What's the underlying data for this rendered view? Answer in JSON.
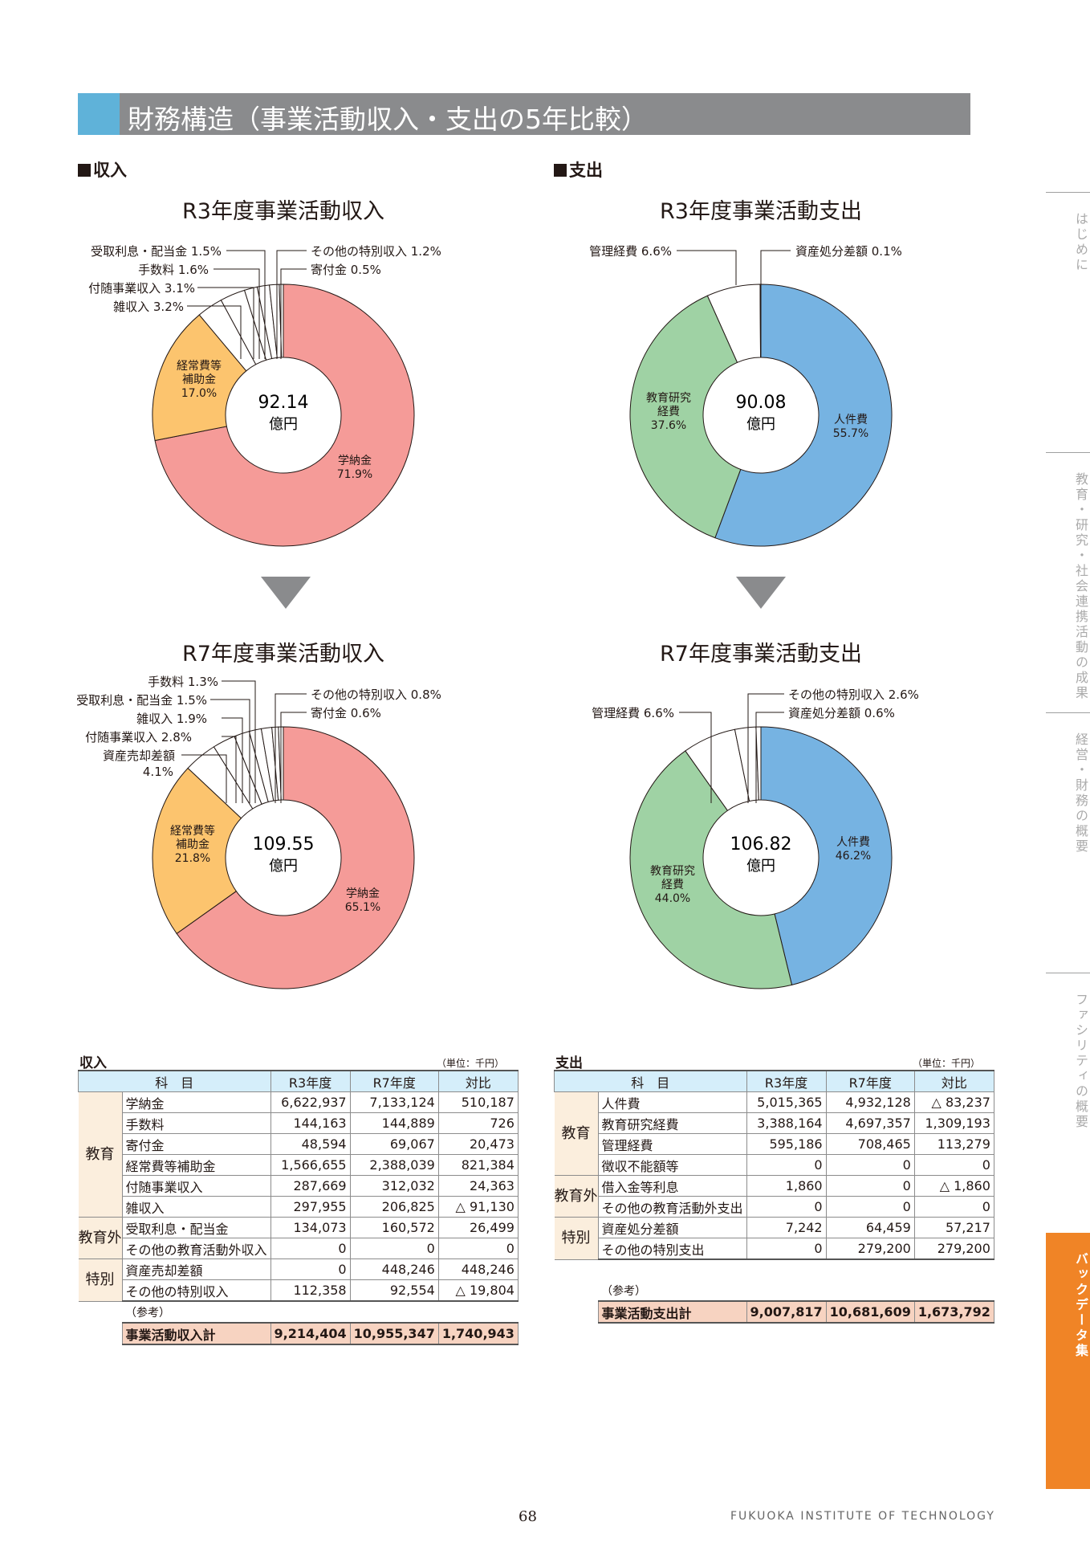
{
  "title": "財務構造（事業活動収入・支出の5年比較）",
  "sections": {
    "income": "収入",
    "expense": "支出"
  },
  "side_tabs": [
    "はじめに",
    "教育・研究・社会連携活動の成果",
    "経営・財務の概要",
    "ファシリティの概要",
    "バックデータ集"
  ],
  "colors": {
    "tuition": "#f59b98",
    "subsidy": "#fcc46e",
    "other": "#ffffff",
    "personnel": "#76b3e2",
    "research": "#9fd2a4",
    "accent": "#f08426",
    "title_bar": "#8a8b8d",
    "title_accent": "#5fb2d9"
  },
  "chart_data": [
    {
      "type": "pie",
      "title": "R3年度事業活動収入",
      "center_value": "92.14",
      "center_unit": "億円",
      "slices": [
        {
          "label": "学納金",
          "value": 71.9,
          "pct": "71.9%",
          "color": "#f59b98"
        },
        {
          "label": "経常費等補助金",
          "value": 17.0,
          "pct": "17.0%",
          "color": "#fcc46e"
        },
        {
          "label": "雑収入",
          "value": 3.2,
          "pct": "3.2%",
          "color": "#ffffff"
        },
        {
          "label": "付随事業収入",
          "value": 3.1,
          "pct": "3.1%",
          "color": "#ffffff"
        },
        {
          "label": "手数料",
          "value": 1.6,
          "pct": "1.6%",
          "color": "#ffffff"
        },
        {
          "label": "受取利息・配当金",
          "value": 1.5,
          "pct": "1.5%",
          "color": "#ffffff"
        },
        {
          "label": "その他の特別収入",
          "value": 1.2,
          "pct": "1.2%",
          "color": "#ffffff"
        },
        {
          "label": "寄付金",
          "value": 0.5,
          "pct": "0.5%",
          "color": "#ffffff"
        }
      ]
    },
    {
      "type": "pie",
      "title": "R3年度事業活動支出",
      "center_value": "90.08",
      "center_unit": "億円",
      "slices": [
        {
          "label": "人件費",
          "value": 55.7,
          "pct": "55.7%",
          "color": "#76b3e2"
        },
        {
          "label": "教育研究経費",
          "value": 37.6,
          "pct": "37.6%",
          "color": "#9fd2a4"
        },
        {
          "label": "管理経費",
          "value": 6.6,
          "pct": "6.6%",
          "color": "#ffffff"
        },
        {
          "label": "資産処分差額",
          "value": 0.1,
          "pct": "0.1%",
          "color": "#ffffff"
        }
      ]
    },
    {
      "type": "pie",
      "title": "R7年度事業活動収入",
      "center_value": "109.55",
      "center_unit": "億円",
      "slices": [
        {
          "label": "学納金",
          "value": 65.1,
          "pct": "65.1%",
          "color": "#f59b98"
        },
        {
          "label": "経常費等補助金",
          "value": 21.8,
          "pct": "21.8%",
          "color": "#fcc46e"
        },
        {
          "label": "資産売却差額",
          "value": 4.1,
          "pct": "4.1%",
          "color": "#ffffff"
        },
        {
          "label": "付随事業収入",
          "value": 2.8,
          "pct": "2.8%",
          "color": "#ffffff"
        },
        {
          "label": "雑収入",
          "value": 1.9,
          "pct": "1.9%",
          "color": "#ffffff"
        },
        {
          "label": "受取利息・配当金",
          "value": 1.5,
          "pct": "1.5%",
          "color": "#ffffff"
        },
        {
          "label": "手数料",
          "value": 1.3,
          "pct": "1.3%",
          "color": "#ffffff"
        },
        {
          "label": "その他の特別収入",
          "value": 0.8,
          "pct": "0.8%",
          "color": "#ffffff"
        },
        {
          "label": "寄付金",
          "value": 0.6,
          "pct": "0.6%",
          "color": "#ffffff"
        }
      ]
    },
    {
      "type": "pie",
      "title": "R7年度事業活動支出",
      "center_value": "106.82",
      "center_unit": "億円",
      "slices": [
        {
          "label": "人件費",
          "value": 46.2,
          "pct": "46.2%",
          "color": "#76b3e2"
        },
        {
          "label": "教育研究経費",
          "value": 44.0,
          "pct": "44.0%",
          "color": "#9fd2a4"
        },
        {
          "label": "管理経費",
          "value": 6.6,
          "pct": "6.6%",
          "color": "#ffffff"
        },
        {
          "label": "その他の特別収入",
          "value": 2.6,
          "pct": "2.6%",
          "color": "#ffffff"
        },
        {
          "label": "資産処分差額",
          "value": 0.6,
          "pct": "0.6%",
          "color": "#ffffff"
        }
      ]
    }
  ],
  "inner_labels": [
    [
      "経常費等",
      "補助金",
      "17.0%"
    ],
    [
      "学納金",
      "71.9%"
    ],
    [
      "教育研究",
      "経費",
      "37.6%"
    ],
    [
      "人件費",
      "55.7%"
    ],
    [
      "経常費等",
      "補助金",
      "21.8%"
    ],
    [
      "学納金",
      "65.1%"
    ],
    [
      "人件費",
      "46.2%"
    ],
    [
      "教育研究",
      "経費",
      "44.0%"
    ]
  ],
  "callouts": [
    "受取利息・配当金 1.5%",
    "手数料 1.6%",
    "付随事業収入 3.1%",
    "雑収入 3.2%",
    "その他の特別収入 1.2%",
    "寄付金 0.5%",
    "管理経費 6.6%",
    "資産処分差額 0.1%",
    "手数料 1.3%",
    "受取利息・配当金 1.5%",
    "雑収入 1.9%",
    "付随事業収入 2.8%",
    "資産売却差額",
    "4.1%",
    "その他の特別収入 0.8%",
    "寄付金 0.6%",
    "その他の特別収入 2.6%",
    "資産処分差額 0.6%",
    "管理経費 6.6%"
  ],
  "income_table": {
    "title": "収入",
    "unit": "（単位：千円）",
    "headers": [
      "科　目",
      "R3年度",
      "R7年度",
      "対比"
    ],
    "groups": [
      "教育",
      "教育外",
      "特別"
    ],
    "rows": [
      [
        "学納金",
        "6,622,937",
        "7,133,124",
        "510,187"
      ],
      [
        "手数料",
        "144,163",
        "144,889",
        "726"
      ],
      [
        "寄付金",
        "48,594",
        "69,067",
        "20,473"
      ],
      [
        "経常費等補助金",
        "1,566,655",
        "2,388,039",
        "821,384"
      ],
      [
        "付随事業収入",
        "287,669",
        "312,032",
        "24,363"
      ],
      [
        "雑収入",
        "297,955",
        "206,825",
        "△ 91,130"
      ],
      [
        "受取利息・配当金",
        "134,073",
        "160,572",
        "26,499"
      ],
      [
        "その他の教育活動外収入",
        "0",
        "0",
        "0"
      ],
      [
        "資産売却差額",
        "0",
        "448,246",
        "448,246"
      ],
      [
        "その他の特別収入",
        "112,358",
        "92,554",
        "△ 19,804"
      ]
    ],
    "note": "（参考）",
    "total": [
      "事業活動収入計",
      "9,214,404",
      "10,955,347",
      "1,740,943"
    ]
  },
  "expense_table": {
    "title": "支出",
    "unit": "（単位：千円）",
    "headers": [
      "科　目",
      "R3年度",
      "R7年度",
      "対比"
    ],
    "groups": [
      "教育",
      "教育外",
      "特別"
    ],
    "rows": [
      [
        "人件費",
        "5,015,365",
        "4,932,128",
        "△ 83,237"
      ],
      [
        "教育研究経費",
        "3,388,164",
        "4,697,357",
        "1,309,193"
      ],
      [
        "管理経費",
        "595,186",
        "708,465",
        "113,279"
      ],
      [
        "徴収不能額等",
        "0",
        "0",
        "0"
      ],
      [
        "借入金等利息",
        "1,860",
        "0",
        "△ 1,860"
      ],
      [
        "その他の教育活動外支出",
        "0",
        "0",
        "0"
      ],
      [
        "資産処分差額",
        "7,242",
        "64,459",
        "57,217"
      ],
      [
        "その他の特別支出",
        "0",
        "279,200",
        "279,200"
      ]
    ],
    "note": "（参考）",
    "total": [
      "事業活動支出計",
      "9,007,817",
      "10,681,609",
      "1,673,792"
    ]
  },
  "page_number": "68",
  "footer": "FUKUOKA INSTITUTE OF TECHNOLOGY"
}
